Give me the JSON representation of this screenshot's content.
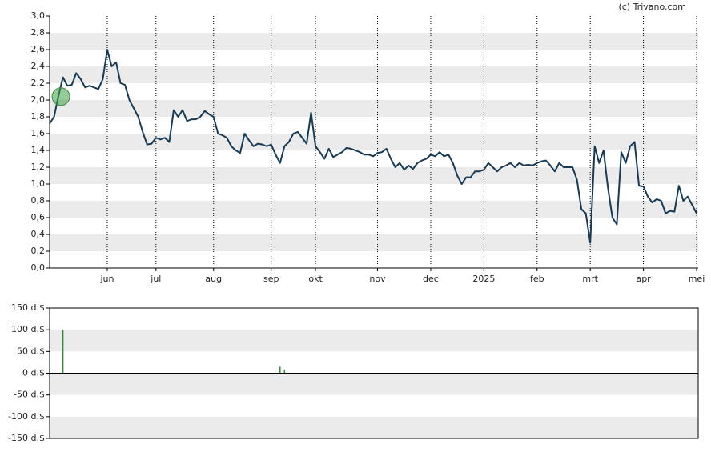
{
  "copyright": "(c) Trivano.com",
  "chart_data": [
    {
      "type": "line",
      "categories": [
        null,
        null,
        null,
        null,
        null,
        null,
        null,
        null,
        null,
        null,
        null,
        null,
        null,
        "jun",
        null,
        null,
        null,
        null,
        null,
        null,
        null,
        null,
        null,
        null,
        "jul",
        null,
        null,
        null,
        null,
        null,
        null,
        null,
        null,
        null,
        null,
        null,
        null,
        "aug",
        null,
        null,
        null,
        null,
        null,
        null,
        null,
        null,
        null,
        null,
        null,
        null,
        "sep",
        null,
        null,
        null,
        null,
        null,
        null,
        null,
        null,
        null,
        "okt",
        null,
        null,
        null,
        null,
        null,
        null,
        null,
        null,
        null,
        null,
        null,
        null,
        null,
        "nov",
        null,
        null,
        null,
        null,
        null,
        null,
        null,
        null,
        null,
        null,
        null,
        "dec",
        null,
        null,
        null,
        null,
        null,
        null,
        null,
        null,
        null,
        null,
        null,
        "2025",
        null,
        null,
        null,
        null,
        null,
        null,
        null,
        null,
        null,
        null,
        null,
        "feb",
        null,
        null,
        null,
        null,
        null,
        null,
        null,
        null,
        null,
        null,
        null,
        "mrt",
        null,
        null,
        null,
        null,
        null,
        null,
        null,
        null,
        null,
        null,
        null,
        "apr",
        null,
        null,
        null,
        null,
        null,
        null,
        null,
        null,
        null,
        null,
        null,
        "mei"
      ],
      "series": [
        {
          "color": "#173b56",
          "values": [
            1.72,
            1.8,
            2.05,
            2.27,
            2.17,
            2.18,
            2.32,
            2.25,
            2.15,
            2.17,
            2.15,
            2.13,
            2.25,
            2.6,
            2.4,
            2.45,
            2.2,
            2.18,
            2.0,
            1.9,
            1.8,
            1.62,
            1.47,
            1.48,
            1.55,
            1.53,
            1.55,
            1.5,
            1.88,
            1.8,
            1.88,
            1.75,
            1.77,
            1.77,
            1.8,
            1.87,
            1.83,
            1.8,
            1.6,
            1.58,
            1.55,
            1.45,
            1.4,
            1.37,
            1.6,
            1.52,
            1.45,
            1.48,
            1.47,
            1.45,
            1.47,
            1.35,
            1.25,
            1.45,
            1.5,
            1.6,
            1.62,
            1.55,
            1.48,
            1.85,
            1.45,
            1.38,
            1.3,
            1.42,
            1.32,
            1.35,
            1.38,
            1.43,
            1.42,
            1.4,
            1.38,
            1.35,
            1.35,
            1.33,
            1.37,
            1.38,
            1.42,
            1.3,
            1.2,
            1.25,
            1.17,
            1.22,
            1.18,
            1.25,
            1.28,
            1.3,
            1.35,
            1.33,
            1.38,
            1.33,
            1.35,
            1.25,
            1.1,
            1.0,
            1.08,
            1.08,
            1.15,
            1.15,
            1.17,
            1.25,
            1.2,
            1.15,
            1.2,
            1.22,
            1.25,
            1.2,
            1.25,
            1.22,
            1.23,
            1.22,
            1.25,
            1.27,
            1.28,
            1.22,
            1.15,
            1.25,
            1.2,
            1.2,
            1.2,
            1.05,
            0.7,
            0.65,
            0.3,
            1.45,
            1.25,
            1.4,
            0.95,
            0.6,
            0.52,
            1.38,
            1.25,
            1.45,
            1.5,
            0.98,
            0.97,
            0.85,
            0.78,
            0.82,
            0.8,
            0.65,
            0.68,
            0.67,
            0.98,
            0.8,
            0.85,
            0.75,
            0.65
          ]
        }
      ],
      "ylim": [
        0,
        3
      ],
      "yticks": [
        {
          "value": 0,
          "label": "0,0"
        },
        {
          "value": 0.2,
          "label": "0,2"
        },
        {
          "value": 0.4,
          "label": "0,4"
        },
        {
          "value": 0.6,
          "label": "0,6"
        },
        {
          "value": 0.8,
          "label": "0,8"
        },
        {
          "value": 1,
          "label": "1,0"
        },
        {
          "value": 1.2,
          "label": "1,2"
        },
        {
          "value": 1.4,
          "label": "1,4"
        },
        {
          "value": 1.6,
          "label": "1,6"
        },
        {
          "value": 1.8,
          "label": "1,8"
        },
        {
          "value": 2,
          "label": "2,0"
        },
        {
          "value": 2.2,
          "label": "2,2"
        },
        {
          "value": 2.4,
          "label": "2,4"
        },
        {
          "value": 2.6,
          "label": "2,6"
        },
        {
          "value": 2.8,
          "label": "2,8"
        },
        {
          "value": 3,
          "label": "3,0"
        }
      ],
      "grid": "bands"
    },
    {
      "type": "bar",
      "color": "#2e8b3a",
      "values": [
        null,
        null,
        null,
        100,
        null,
        null,
        null,
        null,
        null,
        null,
        null,
        null,
        null,
        null,
        null,
        null,
        null,
        null,
        null,
        null,
        null,
        null,
        null,
        null,
        null,
        null,
        null,
        null,
        null,
        null,
        null,
        null,
        null,
        null,
        null,
        null,
        null,
        null,
        null,
        null,
        null,
        null,
        null,
        null,
        null,
        null,
        null,
        null,
        null,
        null,
        null,
        null,
        15,
        8,
        null,
        null,
        null,
        null,
        null,
        null,
        null,
        null,
        null,
        null,
        null,
        null,
        null,
        null,
        null,
        null,
        null,
        null,
        null,
        null,
        null,
        null,
        null,
        null,
        null,
        null,
        null,
        null,
        null,
        null,
        null,
        null,
        null,
        null,
        null,
        null,
        null,
        null,
        null,
        null,
        null,
        null,
        null,
        null,
        null,
        null,
        null,
        null,
        null,
        null,
        null,
        null,
        null,
        null,
        null,
        null,
        null,
        null,
        null,
        null,
        null,
        null,
        null,
        null,
        null,
        null,
        null,
        null,
        null,
        null,
        null,
        null,
        null,
        null,
        null,
        null,
        null,
        null,
        null,
        null,
        null,
        null,
        null,
        null,
        null,
        null,
        null,
        null,
        null,
        null,
        null,
        null,
        null
      ],
      "ylim": [
        -150,
        150
      ],
      "yticks": [
        {
          "value": -150,
          "label": "-150 d.$"
        },
        {
          "value": -100,
          "label": "-100 d.$"
        },
        {
          "value": -50,
          "label": "-50 d.$"
        },
        {
          "value": 0,
          "label": "0 d.$"
        },
        {
          "value": 50,
          "label": "50 d.$"
        },
        {
          "value": 100,
          "label": "100 d.$"
        },
        {
          "value": 150,
          "label": "150 d.$"
        }
      ],
      "grid": "bands"
    }
  ]
}
